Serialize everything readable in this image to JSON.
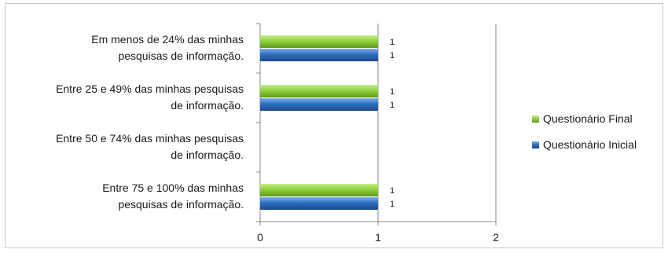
{
  "chart_data": {
    "type": "bar",
    "orientation": "horizontal",
    "categories": [
      "Em menos de 24% das minhas pesquisas de informação.",
      "Entre 25 e 49% das minhas pesquisas de informação.",
      "Entre 50 e 74% das minhas pesquisas de informação.",
      "Entre 75 e 100% das minhas pesquisas de informação."
    ],
    "category_lines": [
      [
        "Em menos de 24% das minhas",
        "pesquisas de informação."
      ],
      [
        "Entre 25 e 49% das minhas pesquisas",
        "de informação."
      ],
      [
        "Entre 50 e 74% das minhas pesquisas",
        "de informação."
      ],
      [
        "Entre 75 e 100% das minhas",
        "pesquisas de informação."
      ]
    ],
    "series": [
      {
        "name": "Questionário Final",
        "values": [
          1,
          1,
          null,
          1
        ],
        "color": "#8fd13f"
      },
      {
        "name": "Questionário Inicial",
        "values": [
          1,
          1,
          null,
          1
        ],
        "color": "#2f6fc0"
      }
    ],
    "data_labels": [
      [
        "1",
        "1",
        "",
        "1"
      ],
      [
        "1",
        "1",
        "",
        "1"
      ]
    ],
    "xlim": [
      0,
      2
    ],
    "x_ticks": [
      "0",
      "1",
      "2"
    ],
    "grid": "vertical",
    "legend_position": "right",
    "title": "",
    "xlabel": "",
    "ylabel": ""
  }
}
